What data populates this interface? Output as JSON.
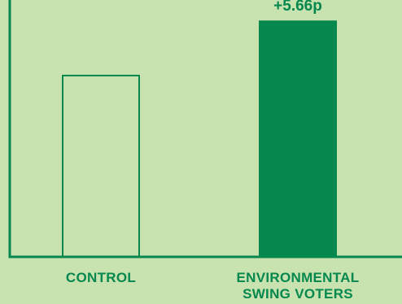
{
  "chart_data": {
    "type": "bar",
    "title": "",
    "xlabel": "",
    "ylabel": "",
    "ylim": [
      0,
      26.8
    ],
    "grid": false,
    "categories": [
      [
        "CONTROL"
      ],
      [
        "ENVIRONMENTAL",
        "SWING VOTERS"
      ]
    ],
    "values": [
      19.0,
      24.66
    ],
    "bar_styles": [
      "outline",
      "filled"
    ],
    "data_labels": [
      "",
      "+5.66p"
    ]
  },
  "colors": {
    "background": "#c8e3b0",
    "bar": "#05874e",
    "axis": "#05874e",
    "text": "#05874e"
  }
}
